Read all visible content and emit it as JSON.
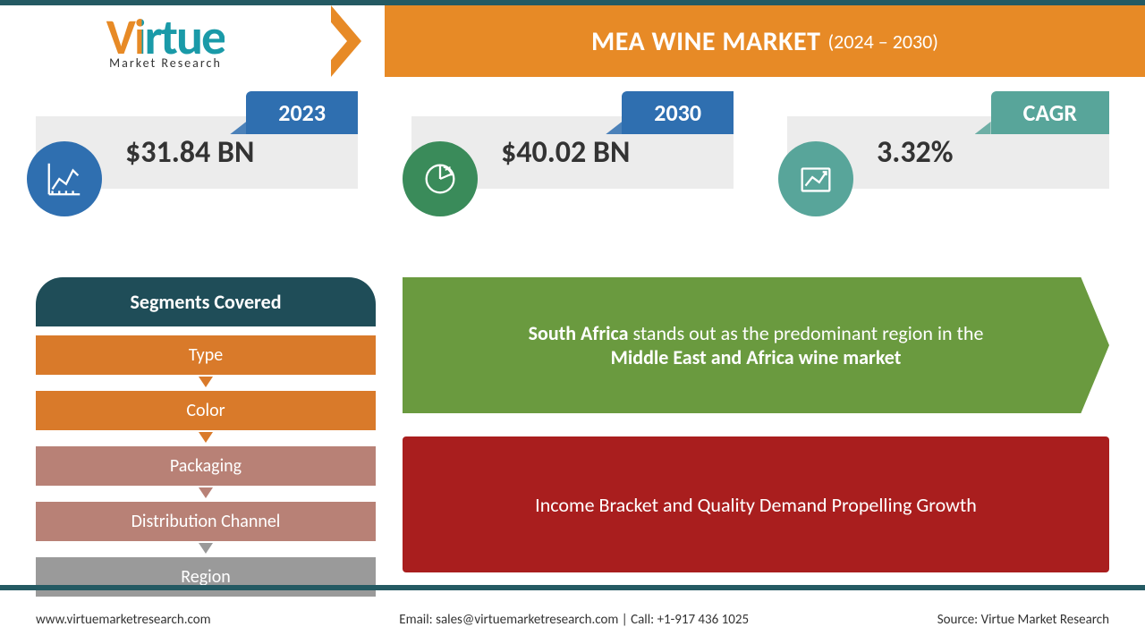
{
  "colors": {
    "teal_dark": "#245a63",
    "orange": "#e78a26",
    "title_bg": "#e78a26",
    "pill_blue": "#2f6fb0",
    "pill_teal": "#58a59a",
    "stat_gray": "#ececec",
    "circle1": "#2f6fb0",
    "circle2": "#3a8b5a",
    "circle3": "#58a59a",
    "seg_header": "#1f4d58",
    "green_callout": "#6a9a3f",
    "red_callout": "#a91e1e"
  },
  "logo": {
    "name": "Virtue",
    "sub": "Market  Research"
  },
  "title": {
    "main": "MEA WINE MARKET",
    "years": "(2024 – 2030)"
  },
  "stats": [
    {
      "label": "2023",
      "value": "$31.84 BN",
      "pill_color": "#2f6fb0",
      "circle_color": "#2f6fb0",
      "icon": "line-chart"
    },
    {
      "label": "2030",
      "value": "$40.02 BN",
      "pill_color": "#2f6fb0",
      "circle_color": "#3a8b5a",
      "icon": "pie"
    },
    {
      "label": "CAGR",
      "value": "3.32%",
      "pill_color": "#58a59a",
      "circle_color": "#58a59a",
      "icon": "growth"
    }
  ],
  "segments": {
    "header": "Segments Covered",
    "items": [
      {
        "label": "Type",
        "bg": "#d97a2a",
        "connector": "#d97a2a"
      },
      {
        "label": "Color",
        "bg": "#d97a2a",
        "connector": "#d97a2a"
      },
      {
        "label": "Packaging",
        "bg": "#b88176",
        "connector": "#b88176"
      },
      {
        "label": "Distribution Channel",
        "bg": "#b88176",
        "connector": "#999999"
      },
      {
        "label": "Region",
        "bg": "#9a9a9a",
        "connector": null
      }
    ]
  },
  "callouts": {
    "green_html": "<b>South Africa</b> stands out as the predominant region in the<br><b>Middle East and Africa wine market</b>",
    "red": "Income Bracket and Quality Demand Propelling Growth"
  },
  "footer": {
    "left": "www.virtuemarketresearch.com",
    "mid": "Email: sales@virtuemarketresearch.com  |  Call: +1-917 436 1025",
    "right": "Source: Virtue Market Research"
  }
}
